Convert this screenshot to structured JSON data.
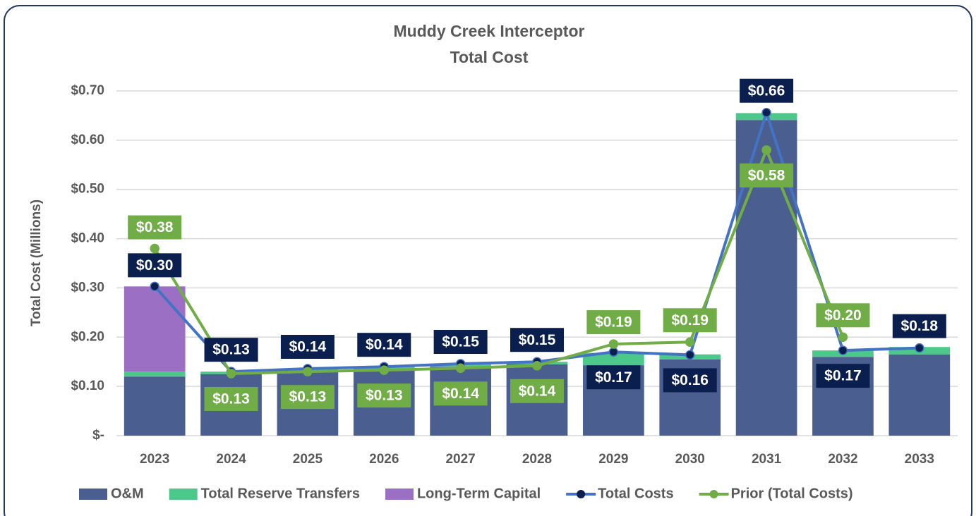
{
  "chart_data": {
    "type": "bar",
    "title": "Muddy Creek Interceptor",
    "subtitle": "Total Cost",
    "y_label": "Total Cost (Millions)",
    "stacked": true,
    "grid": true,
    "legend": "bottom",
    "categories": [
      "2023",
      "2024",
      "2025",
      "2026",
      "2027",
      "2028",
      "2029",
      "2030",
      "2031",
      "2032",
      "2033"
    ],
    "ylim": [
      0,
      0.7
    ],
    "yticks": [
      {
        "value": 0,
        "label": "$-"
      },
      {
        "value": 0.1,
        "label": "$0.10"
      },
      {
        "value": 0.2,
        "label": "$0.20"
      },
      {
        "value": 0.3,
        "label": "$0.30"
      },
      {
        "value": 0.4,
        "label": "$0.40"
      },
      {
        "value": 0.5,
        "label": "$0.50"
      },
      {
        "value": 0.6,
        "label": "$0.60"
      },
      {
        "value": 0.7,
        "label": "$0.70"
      }
    ],
    "series": [
      {
        "name": "O&M",
        "type": "bar",
        "color": "#4a5f8f",
        "values": [
          0.12,
          0.125,
          0.13,
          0.135,
          0.14,
          0.145,
          0.143,
          0.155,
          0.641,
          0.16,
          0.165
        ]
      },
      {
        "name": "Total Reserve Transfers",
        "type": "bar",
        "color": "#4cc98a",
        "values": [
          0.01,
          0.005,
          0.005,
          0.005,
          0.005,
          0.005,
          0.025,
          0.01,
          0.014,
          0.013,
          0.015
        ]
      },
      {
        "name": "Long-Term Capital",
        "type": "bar",
        "color": "#9b6fc4",
        "values": [
          0.173,
          0,
          0,
          0,
          0,
          0,
          0,
          0,
          0,
          0,
          0
        ]
      },
      {
        "name": "Total Costs",
        "type": "line",
        "color": "#4472c4",
        "marker_color": "#0b1f4f",
        "values": [
          0.303,
          0.13,
          0.136,
          0.14,
          0.146,
          0.15,
          0.17,
          0.164,
          0.656,
          0.173,
          0.178
        ],
        "value_labels": [
          "$0.30",
          "$0.13",
          "$0.14",
          "$0.14",
          "$0.15",
          "$0.15",
          "$0.17",
          "$0.16",
          "$0.66",
          "$0.17",
          "$0.18"
        ]
      },
      {
        "name": "Prior (Total Costs)",
        "type": "line",
        "color": "#70ad47",
        "marker_color": "#70ad47",
        "values": [
          0.38,
          0.126,
          0.13,
          0.133,
          0.137,
          0.142,
          0.186,
          0.19,
          0.58,
          0.2,
          null
        ],
        "value_labels": [
          "$0.38",
          "$0.13",
          "$0.13",
          "$0.13",
          "$0.14",
          "$0.14",
          "$0.19",
          "$0.19",
          "$0.58",
          "$0.20",
          null
        ]
      }
    ]
  }
}
